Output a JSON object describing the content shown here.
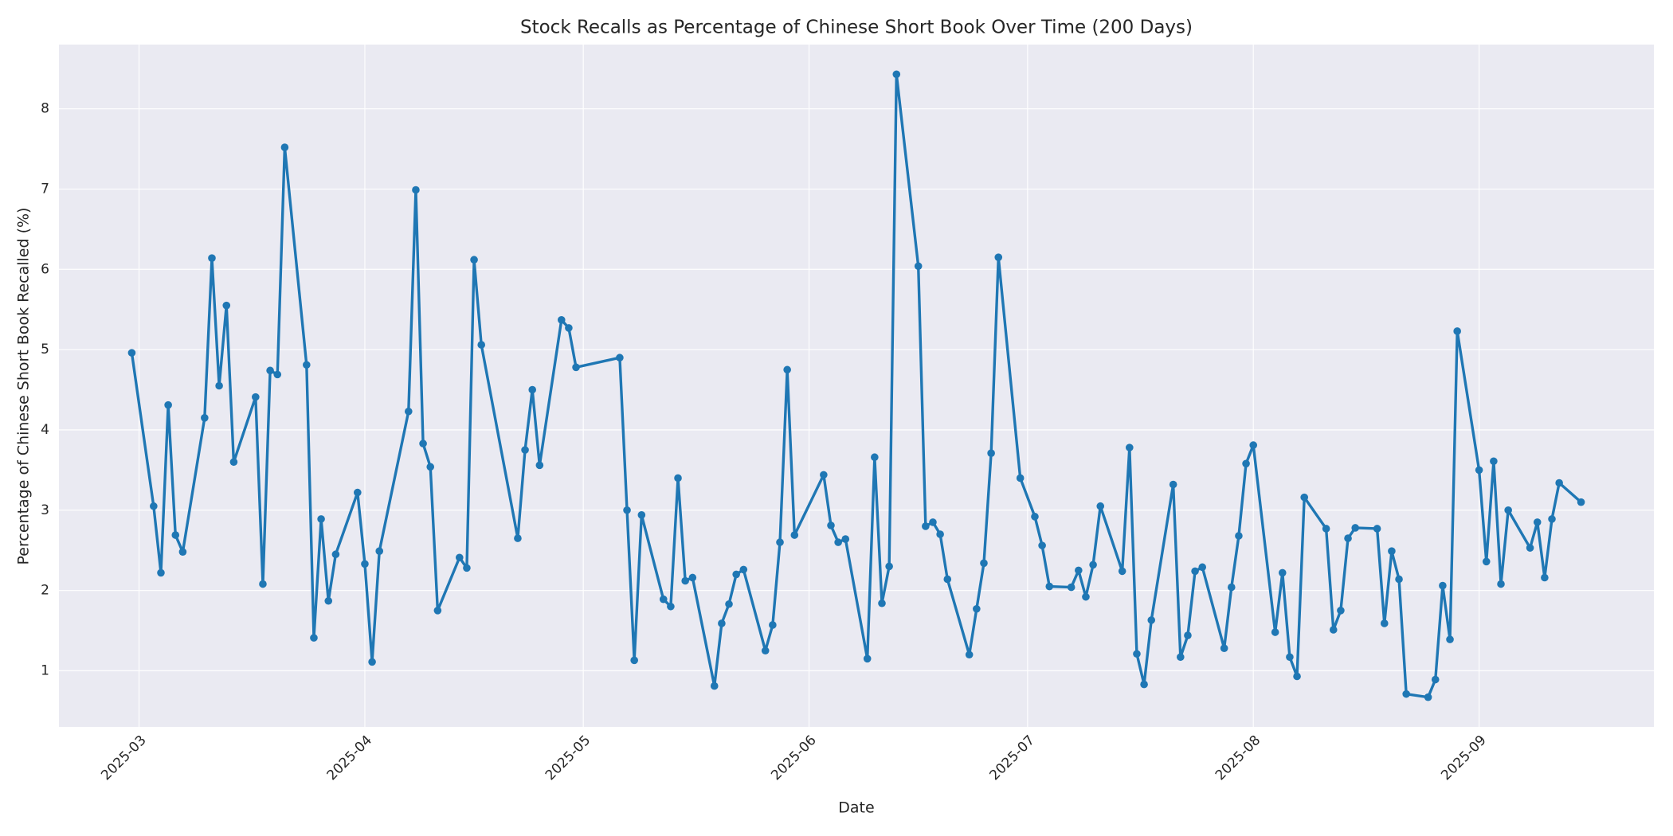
{
  "chart_data": {
    "type": "line",
    "title": "Stock Recalls as Percentage of Chinese Short Book Over Time (200 Days)",
    "x_label": "Date",
    "y_label": "Percentage of Chinese Short Book Recalled (%)",
    "color": "#1f77b4",
    "grid": true,
    "xlim": [
      "2025-02-18",
      "2025-09-25"
    ],
    "xticks": [
      {
        "value": "2025-03-01",
        "label": "2025-03"
      },
      {
        "value": "2025-04-01",
        "label": "2025-04"
      },
      {
        "value": "2025-05-01",
        "label": "2025-05"
      },
      {
        "value": "2025-06-01",
        "label": "2025-06"
      },
      {
        "value": "2025-07-01",
        "label": "2025-07"
      },
      {
        "value": "2025-08-01",
        "label": "2025-08"
      },
      {
        "value": "2025-09-01",
        "label": "2025-09"
      }
    ],
    "ylim": [
      0.3,
      8.8
    ],
    "yticks": [
      1,
      2,
      3,
      4,
      5,
      6,
      7,
      8
    ],
    "x": [
      "2025-02-28",
      "2025-03-03",
      "2025-03-04",
      "2025-03-05",
      "2025-03-06",
      "2025-03-07",
      "2025-03-10",
      "2025-03-11",
      "2025-03-12",
      "2025-03-13",
      "2025-03-14",
      "2025-03-17",
      "2025-03-18",
      "2025-03-19",
      "2025-03-20",
      "2025-03-21",
      "2025-03-24",
      "2025-03-25",
      "2025-03-26",
      "2025-03-27",
      "2025-03-28",
      "2025-03-31",
      "2025-04-01",
      "2025-04-02",
      "2025-04-03",
      "2025-04-07",
      "2025-04-08",
      "2025-04-09",
      "2025-04-10",
      "2025-04-11",
      "2025-04-14",
      "2025-04-15",
      "2025-04-16",
      "2025-04-17",
      "2025-04-22",
      "2025-04-23",
      "2025-04-24",
      "2025-04-25",
      "2025-04-28",
      "2025-04-29",
      "2025-04-30",
      "2025-05-06",
      "2025-05-07",
      "2025-05-08",
      "2025-05-09",
      "2025-05-12",
      "2025-05-13",
      "2025-05-14",
      "2025-05-15",
      "2025-05-16",
      "2025-05-19",
      "2025-05-20",
      "2025-05-21",
      "2025-05-22",
      "2025-05-23",
      "2025-05-26",
      "2025-05-27",
      "2025-05-28",
      "2025-05-29",
      "2025-05-30",
      "2025-06-03",
      "2025-06-04",
      "2025-06-05",
      "2025-06-06",
      "2025-06-09",
      "2025-06-10",
      "2025-06-11",
      "2025-06-12",
      "2025-06-13",
      "2025-06-16",
      "2025-06-17",
      "2025-06-18",
      "2025-06-19",
      "2025-06-20",
      "2025-06-23",
      "2025-06-24",
      "2025-06-25",
      "2025-06-26",
      "2025-06-27",
      "2025-06-30",
      "2025-07-02",
      "2025-07-03",
      "2025-07-04",
      "2025-07-07",
      "2025-07-08",
      "2025-07-09",
      "2025-07-10",
      "2025-07-11",
      "2025-07-14",
      "2025-07-15",
      "2025-07-16",
      "2025-07-17",
      "2025-07-18",
      "2025-07-21",
      "2025-07-22",
      "2025-07-23",
      "2025-07-24",
      "2025-07-25",
      "2025-07-28",
      "2025-07-29",
      "2025-07-30",
      "2025-07-31",
      "2025-08-01",
      "2025-08-04",
      "2025-08-05",
      "2025-08-06",
      "2025-08-07",
      "2025-08-08",
      "2025-08-11",
      "2025-08-12",
      "2025-08-13",
      "2025-08-14",
      "2025-08-15",
      "2025-08-18",
      "2025-08-19",
      "2025-08-20",
      "2025-08-21",
      "2025-08-22",
      "2025-08-25",
      "2025-08-26",
      "2025-08-27",
      "2025-08-28",
      "2025-08-29",
      "2025-09-01",
      "2025-09-02",
      "2025-09-03",
      "2025-09-04",
      "2025-09-05",
      "2025-09-08",
      "2025-09-09",
      "2025-09-10",
      "2025-09-11",
      "2025-09-12",
      "2025-09-15"
    ],
    "values": [
      4.96,
      3.05,
      2.22,
      4.31,
      2.69,
      2.48,
      4.15,
      6.14,
      4.55,
      5.55,
      3.6,
      4.41,
      2.08,
      4.74,
      4.69,
      7.52,
      4.81,
      1.41,
      2.89,
      1.87,
      2.45,
      3.22,
      2.33,
      1.11,
      2.49,
      4.23,
      6.99,
      3.83,
      3.54,
      1.75,
      2.41,
      2.28,
      6.12,
      5.06,
      2.65,
      3.75,
      4.5,
      3.56,
      5.37,
      5.27,
      4.78,
      4.9,
      3.0,
      1.13,
      2.94,
      1.89,
      1.8,
      3.4,
      2.12,
      2.16,
      0.81,
      1.59,
      1.83,
      2.2,
      2.26,
      1.25,
      1.57,
      2.6,
      4.75,
      2.69,
      3.44,
      2.81,
      2.6,
      2.64,
      1.15,
      3.66,
      1.84,
      2.3,
      8.43,
      6.04,
      2.8,
      2.85,
      2.7,
      2.14,
      1.2,
      1.77,
      2.34,
      3.71,
      6.15,
      3.4,
      2.92,
      2.56,
      2.05,
      2.04,
      2.25,
      1.92,
      2.32,
      3.05,
      2.24,
      3.78,
      1.21,
      0.83,
      1.63,
      3.32,
      1.17,
      1.44,
      2.24,
      2.29,
      1.28,
      2.04,
      2.68,
      3.58,
      3.81,
      1.48,
      2.22,
      1.17,
      0.93,
      3.16,
      2.77,
      1.51,
      1.75,
      2.65,
      2.78,
      2.77,
      1.59,
      2.49,
      2.14,
      0.71,
      0.67,
      0.89,
      2.06,
      1.39,
      5.23,
      3.5,
      2.36,
      3.61,
      2.08,
      3.0,
      2.53,
      2.85,
      2.16,
      2.89,
      3.34,
      3.1
    ]
  }
}
